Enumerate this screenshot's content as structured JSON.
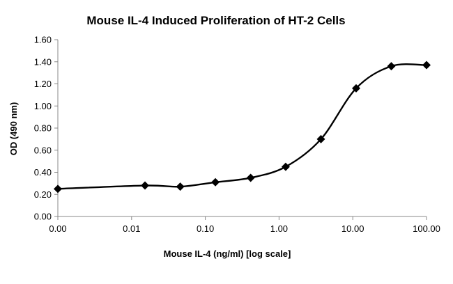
{
  "chart_data": {
    "type": "line",
    "title": "Mouse IL-4 Induced Proliferation of HT-2 Cells",
    "xlabel": "Mouse IL-4 (ng/ml) [log scale]",
    "ylabel": "OD (490 nm)",
    "x_scale": "log",
    "x_ticks": [
      "0.00",
      "0.01",
      "0.10",
      "1.00",
      "10.00",
      "100.00"
    ],
    "y_ticks": [
      "0.00",
      "0.20",
      "0.40",
      "0.60",
      "0.80",
      "1.00",
      "1.20",
      "1.40",
      "1.60"
    ],
    "ylim": [
      0,
      1.6
    ],
    "grid": false,
    "legend": "none",
    "line_style": "smoothed",
    "marker": "diamond",
    "color": "#000000",
    "series": [
      {
        "x": [
          0.001,
          0.0152,
          0.0457,
          0.137,
          0.412,
          1.23,
          3.7,
          11.1,
          33.3,
          100
        ],
        "y": [
          0.25,
          0.28,
          0.27,
          0.31,
          0.35,
          0.45,
          0.7,
          1.16,
          1.36,
          1.37
        ]
      }
    ]
  }
}
